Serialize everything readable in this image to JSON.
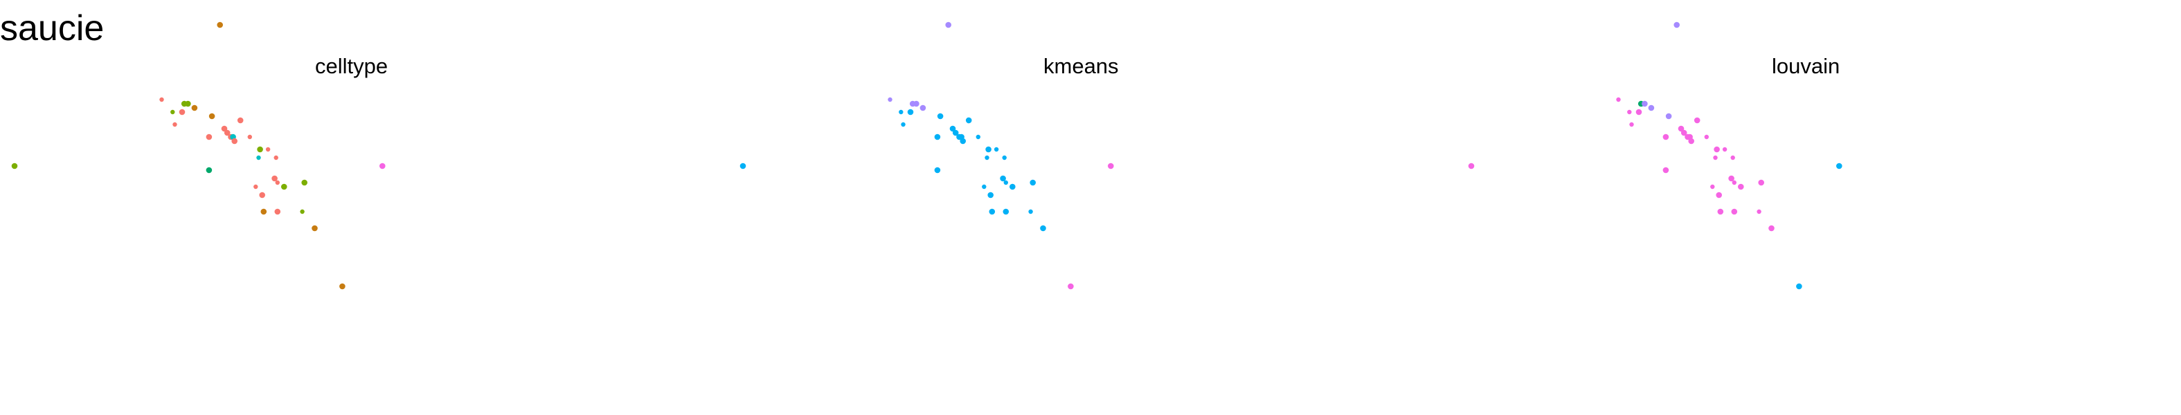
{
  "figure": {
    "title": "saucie"
  },
  "colors": {
    "red": "#F8766D",
    "olive": "#7CAE00",
    "brown": "#C77C11",
    "teal": "#00BFC4",
    "purple": "#A58AFF",
    "magenta": "#F564E3",
    "green": "#00A86B",
    "blue": "#00B0F6"
  },
  "chart_data": [
    {
      "type": "scatter",
      "title": "celltype",
      "grid": false,
      "axes_visible": false,
      "points": [
        {
          "x": 0.02,
          "y": 0.6,
          "c": "olive"
        },
        {
          "x": 0.302,
          "y": 0.94,
          "c": "brown"
        },
        {
          "x": 0.525,
          "y": 0.6,
          "c": "magenta"
        },
        {
          "x": 0.222,
          "y": 0.76,
          "c": "red",
          "s": 2
        },
        {
          "x": 0.237,
          "y": 0.73,
          "c": "olive",
          "s": 2
        },
        {
          "x": 0.24,
          "y": 0.7,
          "c": "red",
          "s": 2
        },
        {
          "x": 0.25,
          "y": 0.73,
          "c": "red"
        },
        {
          "x": 0.253,
          "y": 0.75,
          "c": "olive"
        },
        {
          "x": 0.258,
          "y": 0.75,
          "c": "olive"
        },
        {
          "x": 0.267,
          "y": 0.74,
          "c": "brown"
        },
        {
          "x": 0.291,
          "y": 0.72,
          "c": "brown"
        },
        {
          "x": 0.287,
          "y": 0.67,
          "c": "red"
        },
        {
          "x": 0.287,
          "y": 0.59,
          "c": "green"
        },
        {
          "x": 0.308,
          "y": 0.69,
          "c": "red"
        },
        {
          "x": 0.312,
          "y": 0.68,
          "c": "red"
        },
        {
          "x": 0.317,
          "y": 0.67,
          "c": "red"
        },
        {
          "x": 0.32,
          "y": 0.67,
          "c": "teal"
        },
        {
          "x": 0.322,
          "y": 0.66,
          "c": "red"
        },
        {
          "x": 0.33,
          "y": 0.71,
          "c": "red"
        },
        {
          "x": 0.343,
          "y": 0.67,
          "c": "red",
          "s": 2
        },
        {
          "x": 0.357,
          "y": 0.64,
          "c": "olive"
        },
        {
          "x": 0.368,
          "y": 0.64,
          "c": "red",
          "s": 2
        },
        {
          "x": 0.355,
          "y": 0.62,
          "c": "teal",
          "s": 2
        },
        {
          "x": 0.379,
          "y": 0.62,
          "c": "red",
          "s": 2
        },
        {
          "x": 0.351,
          "y": 0.55,
          "c": "red",
          "s": 2
        },
        {
          "x": 0.377,
          "y": 0.57,
          "c": "red"
        },
        {
          "x": 0.39,
          "y": 0.55,
          "c": "olive"
        },
        {
          "x": 0.418,
          "y": 0.56,
          "c": "olive"
        },
        {
          "x": 0.36,
          "y": 0.53,
          "c": "red"
        },
        {
          "x": 0.381,
          "y": 0.56,
          "c": "red",
          "s": 2
        },
        {
          "x": 0.362,
          "y": 0.49,
          "c": "brown"
        },
        {
          "x": 0.381,
          "y": 0.49,
          "c": "red"
        },
        {
          "x": 0.415,
          "y": 0.49,
          "c": "olive",
          "s": 2
        },
        {
          "x": 0.432,
          "y": 0.45,
          "c": "brown"
        },
        {
          "x": 0.47,
          "y": 0.31,
          "c": "brown"
        }
      ]
    },
    {
      "type": "scatter",
      "title": "kmeans",
      "grid": false,
      "axes_visible": false,
      "points": [
        {
          "x": 0.02,
          "y": 0.6,
          "c": "blue"
        },
        {
          "x": 0.302,
          "y": 0.94,
          "c": "purple"
        },
        {
          "x": 0.525,
          "y": 0.6,
          "c": "magenta"
        },
        {
          "x": 0.222,
          "y": 0.76,
          "c": "purple",
          "s": 2
        },
        {
          "x": 0.237,
          "y": 0.73,
          "c": "blue",
          "s": 2
        },
        {
          "x": 0.24,
          "y": 0.7,
          "c": "blue",
          "s": 2
        },
        {
          "x": 0.25,
          "y": 0.73,
          "c": "blue"
        },
        {
          "x": 0.253,
          "y": 0.75,
          "c": "purple"
        },
        {
          "x": 0.258,
          "y": 0.75,
          "c": "purple"
        },
        {
          "x": 0.267,
          "y": 0.74,
          "c": "purple"
        },
        {
          "x": 0.291,
          "y": 0.72,
          "c": "blue"
        },
        {
          "x": 0.287,
          "y": 0.67,
          "c": "blue"
        },
        {
          "x": 0.287,
          "y": 0.59,
          "c": "blue"
        },
        {
          "x": 0.308,
          "y": 0.69,
          "c": "blue"
        },
        {
          "x": 0.312,
          "y": 0.68,
          "c": "blue"
        },
        {
          "x": 0.317,
          "y": 0.67,
          "c": "blue"
        },
        {
          "x": 0.32,
          "y": 0.67,
          "c": "blue"
        },
        {
          "x": 0.322,
          "y": 0.66,
          "c": "blue"
        },
        {
          "x": 0.33,
          "y": 0.71,
          "c": "blue"
        },
        {
          "x": 0.343,
          "y": 0.67,
          "c": "blue",
          "s": 2
        },
        {
          "x": 0.357,
          "y": 0.64,
          "c": "blue"
        },
        {
          "x": 0.368,
          "y": 0.64,
          "c": "blue",
          "s": 2
        },
        {
          "x": 0.355,
          "y": 0.62,
          "c": "blue",
          "s": 2
        },
        {
          "x": 0.379,
          "y": 0.62,
          "c": "blue",
          "s": 2
        },
        {
          "x": 0.351,
          "y": 0.55,
          "c": "blue",
          "s": 2
        },
        {
          "x": 0.377,
          "y": 0.57,
          "c": "blue"
        },
        {
          "x": 0.39,
          "y": 0.55,
          "c": "blue"
        },
        {
          "x": 0.418,
          "y": 0.56,
          "c": "blue"
        },
        {
          "x": 0.36,
          "y": 0.53,
          "c": "blue"
        },
        {
          "x": 0.381,
          "y": 0.56,
          "c": "blue",
          "s": 2
        },
        {
          "x": 0.362,
          "y": 0.49,
          "c": "blue"
        },
        {
          "x": 0.381,
          "y": 0.49,
          "c": "blue"
        },
        {
          "x": 0.415,
          "y": 0.49,
          "c": "blue",
          "s": 2
        },
        {
          "x": 0.432,
          "y": 0.45,
          "c": "blue"
        },
        {
          "x": 0.47,
          "y": 0.31,
          "c": "magenta"
        }
      ]
    },
    {
      "type": "scatter",
      "title": "louvain",
      "grid": false,
      "axes_visible": false,
      "points": [
        {
          "x": 0.02,
          "y": 0.6,
          "c": "magenta"
        },
        {
          "x": 0.302,
          "y": 0.94,
          "c": "purple"
        },
        {
          "x": 0.525,
          "y": 0.6,
          "c": "blue"
        },
        {
          "x": 0.222,
          "y": 0.76,
          "c": "magenta",
          "s": 2
        },
        {
          "x": 0.237,
          "y": 0.73,
          "c": "magenta",
          "s": 2
        },
        {
          "x": 0.24,
          "y": 0.7,
          "c": "magenta",
          "s": 2
        },
        {
          "x": 0.25,
          "y": 0.73,
          "c": "magenta"
        },
        {
          "x": 0.253,
          "y": 0.75,
          "c": "green"
        },
        {
          "x": 0.258,
          "y": 0.75,
          "c": "purple"
        },
        {
          "x": 0.267,
          "y": 0.74,
          "c": "purple"
        },
        {
          "x": 0.291,
          "y": 0.72,
          "c": "purple"
        },
        {
          "x": 0.287,
          "y": 0.67,
          "c": "magenta"
        },
        {
          "x": 0.287,
          "y": 0.59,
          "c": "magenta"
        },
        {
          "x": 0.308,
          "y": 0.69,
          "c": "magenta"
        },
        {
          "x": 0.312,
          "y": 0.68,
          "c": "magenta"
        },
        {
          "x": 0.317,
          "y": 0.67,
          "c": "magenta"
        },
        {
          "x": 0.32,
          "y": 0.67,
          "c": "magenta"
        },
        {
          "x": 0.322,
          "y": 0.66,
          "c": "magenta"
        },
        {
          "x": 0.33,
          "y": 0.71,
          "c": "magenta"
        },
        {
          "x": 0.343,
          "y": 0.67,
          "c": "magenta",
          "s": 2
        },
        {
          "x": 0.357,
          "y": 0.64,
          "c": "magenta"
        },
        {
          "x": 0.368,
          "y": 0.64,
          "c": "magenta",
          "s": 2
        },
        {
          "x": 0.355,
          "y": 0.62,
          "c": "magenta",
          "s": 2
        },
        {
          "x": 0.379,
          "y": 0.62,
          "c": "magenta",
          "s": 2
        },
        {
          "x": 0.351,
          "y": 0.55,
          "c": "magenta",
          "s": 2
        },
        {
          "x": 0.377,
          "y": 0.57,
          "c": "magenta"
        },
        {
          "x": 0.39,
          "y": 0.55,
          "c": "magenta"
        },
        {
          "x": 0.418,
          "y": 0.56,
          "c": "magenta"
        },
        {
          "x": 0.36,
          "y": 0.53,
          "c": "magenta"
        },
        {
          "x": 0.381,
          "y": 0.56,
          "c": "magenta",
          "s": 2
        },
        {
          "x": 0.362,
          "y": 0.49,
          "c": "magenta"
        },
        {
          "x": 0.381,
          "y": 0.49,
          "c": "magenta"
        },
        {
          "x": 0.415,
          "y": 0.49,
          "c": "magenta",
          "s": 2
        },
        {
          "x": 0.432,
          "y": 0.45,
          "c": "magenta"
        },
        {
          "x": 0.47,
          "y": 0.31,
          "c": "blue"
        }
      ]
    }
  ]
}
